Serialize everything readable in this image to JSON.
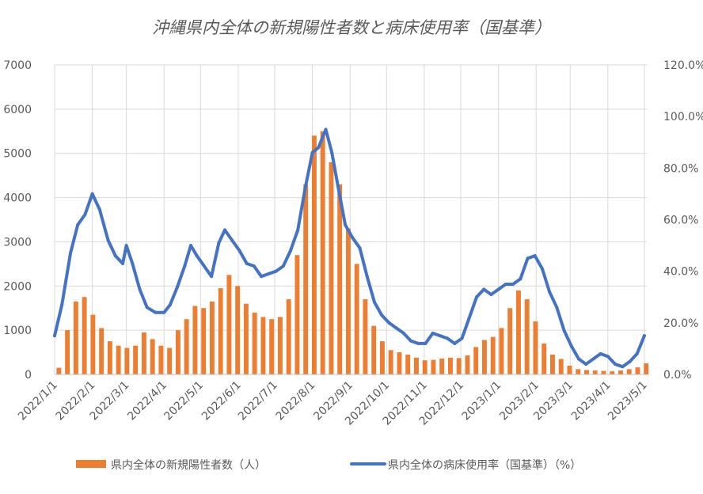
{
  "chart_data": {
    "type": "bar+line",
    "title": "沖縄県内全体の新規陽性者数と病床使用率（国基準）",
    "xlabel": "",
    "ylabel": "",
    "ylim": [
      0,
      7000
    ],
    "y2lim": [
      0,
      120
    ],
    "y_ticks": [
      "0",
      "1000",
      "2000",
      "3000",
      "4000",
      "5000",
      "6000",
      "7000"
    ],
    "y2_ticks": [
      "0.0%",
      "20.0%",
      "40.0%",
      "60.0%",
      "80.0%",
      "100.0%",
      "120.0%"
    ],
    "x_ticks": [
      "2022/1/1",
      "2022/2/1",
      "2022/3/1",
      "2022/4/1",
      "2022/5/1",
      "2022/6/1",
      "2022/7/1",
      "2022/8/1",
      "2022/9/1",
      "2022/10/1",
      "2022/11/1",
      "2022/12/1",
      "2023/1/1",
      "2023/2/1",
      "2023/3/1",
      "2023/4/1",
      "2023/5/1"
    ],
    "grid": true,
    "legend_position": "bottom",
    "series": [
      {
        "name": "県内全体の新規陽性者数（人）",
        "type": "bar",
        "axis": "left",
        "color": "#ED7D31",
        "x": [
          "2022/1/1",
          "2022/1/8",
          "2022/1/15",
          "2022/1/22",
          "2022/1/29",
          "2022/2/5",
          "2022/2/12",
          "2022/2/19",
          "2022/2/26",
          "2022/3/5",
          "2022/3/12",
          "2022/3/19",
          "2022/3/26",
          "2022/4/2",
          "2022/4/9",
          "2022/4/16",
          "2022/4/23",
          "2022/4/30",
          "2022/5/7",
          "2022/5/14",
          "2022/5/21",
          "2022/5/28",
          "2022/6/4",
          "2022/6/11",
          "2022/6/18",
          "2022/6/25",
          "2022/7/2",
          "2022/7/9",
          "2022/7/16",
          "2022/7/23",
          "2022/7/30",
          "2022/8/6",
          "2022/8/13",
          "2022/8/20",
          "2022/8/27",
          "2022/9/3",
          "2022/9/10",
          "2022/9/17",
          "2022/9/24",
          "2022/10/1",
          "2022/10/8",
          "2022/10/15",
          "2022/10/22",
          "2022/10/29",
          "2022/11/5",
          "2022/11/12",
          "2022/11/19",
          "2022/11/26",
          "2022/12/3",
          "2022/12/10",
          "2022/12/17",
          "2022/12/24",
          "2022/12/31",
          "2023/1/7",
          "2023/1/14",
          "2023/1/21",
          "2023/1/28",
          "2023/2/4",
          "2023/2/11",
          "2023/2/18",
          "2023/2/25",
          "2023/3/4",
          "2023/3/11",
          "2023/3/18",
          "2023/3/25",
          "2023/4/1",
          "2023/4/8",
          "2023/4/15",
          "2023/4/22",
          "2023/4/29"
        ],
        "values": [
          150,
          1000,
          1650,
          1750,
          1350,
          1050,
          750,
          650,
          600,
          650,
          950,
          800,
          650,
          600,
          1000,
          1250,
          1550,
          1500,
          1650,
          1950,
          2250,
          2000,
          1600,
          1400,
          1300,
          1250,
          1300,
          1700,
          2700,
          4300,
          5400,
          5500,
          4800,
          4300,
          3300,
          2500,
          1700,
          1100,
          750,
          550,
          500,
          450,
          380,
          320,
          330,
          360,
          380,
          370,
          430,
          620,
          780,
          850,
          1050,
          1500,
          1900,
          1700,
          1200,
          700,
          450,
          350,
          200,
          120,
          100,
          90,
          80,
          70,
          90,
          120,
          160,
          250
        ]
      },
      {
        "name": "県内全体の病床使用率（国基準）（%）",
        "type": "line",
        "axis": "right",
        "color": "#4472C4",
        "x": [
          "2022/1/1",
          "2022/1/7",
          "2022/1/14",
          "2022/1/20",
          "2022/1/26",
          "2022/2/1",
          "2022/2/7",
          "2022/2/14",
          "2022/2/20",
          "2022/2/26",
          "2022/3/1",
          "2022/3/6",
          "2022/3/12",
          "2022/3/18",
          "2022/3/25",
          "2022/4/1",
          "2022/4/6",
          "2022/4/12",
          "2022/4/18",
          "2022/4/23",
          "2022/4/28",
          "2022/5/4",
          "2022/5/10",
          "2022/5/16",
          "2022/5/21",
          "2022/5/27",
          "2022/6/2",
          "2022/6/8",
          "2022/6/14",
          "2022/6/20",
          "2022/6/26",
          "2022/7/2",
          "2022/7/8",
          "2022/7/14",
          "2022/7/20",
          "2022/7/26",
          "2022/8/1",
          "2022/8/6",
          "2022/8/12",
          "2022/8/17",
          "2022/8/22",
          "2022/8/28",
          "2022/9/3",
          "2022/9/9",
          "2022/9/15",
          "2022/9/21",
          "2022/9/27",
          "2022/10/3",
          "2022/10/9",
          "2022/10/15",
          "2022/10/21",
          "2022/10/27",
          "2022/11/2",
          "2022/11/8",
          "2022/11/14",
          "2022/11/20",
          "2022/11/26",
          "2022/12/2",
          "2022/12/8",
          "2022/12/14",
          "2022/12/20",
          "2022/12/26",
          "2023/1/1",
          "2023/1/7",
          "2023/1/13",
          "2023/1/19",
          "2023/1/25",
          "2023/1/31",
          "2023/2/6",
          "2023/2/12",
          "2023/2/18",
          "2023/2/24",
          "2023/3/2",
          "2023/3/8",
          "2023/3/14",
          "2023/3/20",
          "2023/3/26",
          "2023/4/1",
          "2023/4/7",
          "2023/4/13",
          "2023/4/19",
          "2023/4/25",
          "2023/5/1"
        ],
        "values": [
          15,
          27,
          47,
          58,
          62,
          70,
          64,
          52,
          46,
          43,
          50,
          43,
          33,
          26,
          24,
          24,
          27,
          34,
          42,
          50,
          46,
          42,
          38,
          51,
          56,
          52,
          48,
          43,
          42,
          38,
          39,
          40,
          42,
          48,
          56,
          72,
          86,
          88,
          95,
          86,
          73,
          58,
          53,
          49,
          38,
          28,
          23,
          20,
          18,
          16,
          13,
          12,
          12,
          16,
          15,
          14,
          12,
          14,
          22,
          30,
          33,
          31,
          33,
          35,
          35,
          37,
          45,
          46,
          41,
          32,
          26,
          17,
          11,
          6,
          4,
          6,
          8,
          7,
          4,
          3,
          5,
          8,
          15
        ]
      }
    ]
  }
}
